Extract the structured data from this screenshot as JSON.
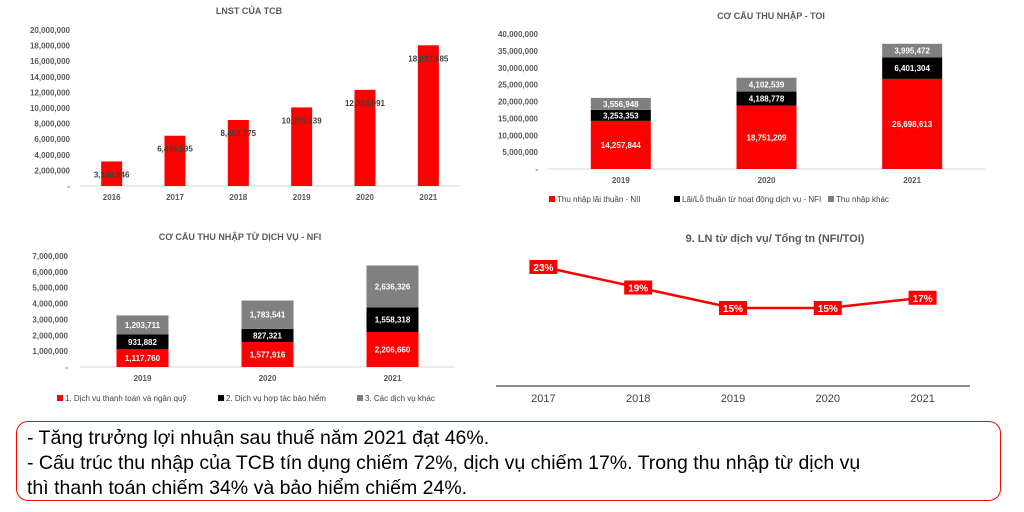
{
  "chart_data": [
    {
      "id": "lnst",
      "type": "bar",
      "title": "LNST CỦA TCB",
      "categories": [
        "2016",
        "2017",
        "2018",
        "2019",
        "2020",
        "2021"
      ],
      "values": [
        3148846,
        6445595,
        8462775,
        10075139,
        12324991,
        18037685
      ],
      "data_labels": [
        "3,148,846",
        "6,445,595",
        "8,462,775",
        "10,075,139",
        "12,324,991",
        "18,037,685"
      ],
      "ylim": [
        0,
        20000000
      ],
      "yticks": [
        0,
        2000000,
        4000000,
        6000000,
        8000000,
        10000000,
        12000000,
        14000000,
        16000000,
        18000000,
        20000000
      ],
      "ytick_labels": [
        "-",
        "2,000,000",
        "4,000,000",
        "6,000,000",
        "8,000,000",
        "10,000,000",
        "12,000,000",
        "14,000,000",
        "16,000,000",
        "18,000,000",
        "20,000,000"
      ],
      "xlabel": "",
      "ylabel": "",
      "grid": false,
      "color": "#ff0000"
    },
    {
      "id": "toi",
      "type": "bar",
      "stacked": true,
      "title": "CƠ CẤU THU NHẬP - TOI",
      "categories": [
        "2019",
        "2020",
        "2021"
      ],
      "series": [
        {
          "name": "Thu nhập lãi thuần - NII",
          "color": "#ff0000",
          "label_color": "#ffffff",
          "values": [
            14257844,
            18751209,
            26698613
          ],
          "data_labels": [
            "14,257,844",
            "18,751,209",
            "26,698,613"
          ]
        },
        {
          "name": "Lãi/Lỗ thuần từ hoạt động dịch vụ - NFI",
          "color": "#000000",
          "label_color": "#ffffff",
          "values": [
            3253353,
            4188778,
            6401304
          ],
          "data_labels": [
            "3,253,353",
            "4,188,778",
            "6,401,304"
          ]
        },
        {
          "name": "Thu nhập khác",
          "color": "#808080",
          "label_color": "#ffffff",
          "values": [
            3556948,
            4102539,
            3995472
          ],
          "data_labels": [
            "3,556,948",
            "4,102,539",
            "3,995,472"
          ]
        }
      ],
      "ylim": [
        0,
        40000000
      ],
      "yticks": [
        0,
        5000000,
        10000000,
        15000000,
        20000000,
        25000000,
        30000000,
        35000000,
        40000000
      ],
      "ytick_labels": [
        "-",
        "5,000,000",
        "10,000,000",
        "15,000,000",
        "20,000,000",
        "25,000,000",
        "30,000,000",
        "35,000,000",
        "40,000,000"
      ],
      "legend": "bottom",
      "grid": false
    },
    {
      "id": "nfi",
      "type": "bar",
      "stacked": true,
      "title": "CƠ CẤU THU NHẬP TỪ DỊCH VỤ - NFI",
      "categories": [
        "2019",
        "2020",
        "2021"
      ],
      "series": [
        {
          "name": "1. Dịch vụ thanh toán và ngân quỹ",
          "color": "#ff0000",
          "label_color": "#ffffff",
          "values": [
            1117760,
            1577916,
            2206660
          ],
          "data_labels": [
            "1,117,760",
            "1,577,916",
            "2,206,660"
          ]
        },
        {
          "name": "2. Dịch vụ hợp tác bảo hiểm",
          "color": "#000000",
          "label_color": "#ffffff",
          "values": [
            931882,
            827321,
            1558318
          ],
          "data_labels": [
            "931,882",
            "827,321",
            "1,558,318"
          ]
        },
        {
          "name": "3. Các dịch vụ khác",
          "color": "#808080",
          "label_color": "#ffffff",
          "values": [
            1203711,
            1783541,
            2636326
          ],
          "data_labels": [
            "1,203,711",
            "1,783,541",
            "2,636,326"
          ]
        }
      ],
      "ylim": [
        0,
        7000000
      ],
      "yticks": [
        0,
        1000000,
        2000000,
        3000000,
        4000000,
        5000000,
        6000000,
        7000000
      ],
      "ytick_labels": [
        "-",
        "1,000,000",
        "2,000,000",
        "3,000,000",
        "4,000,000",
        "5,000,000",
        "6,000,000",
        "7,000,000"
      ],
      "legend": "bottom",
      "grid": false
    },
    {
      "id": "ratio",
      "type": "line",
      "title": "9. LN từ dịch vụ/ Tổng tn (NFI/TOI)",
      "categories": [
        "2017",
        "2018",
        "2019",
        "2020",
        "2021"
      ],
      "values": [
        23,
        19,
        15,
        15,
        17
      ],
      "data_labels": [
        "23%",
        "19%",
        "15%",
        "15%",
        "17%"
      ],
      "ylim": [
        0,
        26
      ],
      "color": "#ff0000",
      "grid": false
    }
  ],
  "note": {
    "lines": [
      "- Tăng trưởng lợi nhuận sau thuế năm 2021 đạt 46%.",
      "- Cấu trúc thu nhập của TCB tín dụng chiếm 72%, dịch vụ chiếm 17%. Trong thu nhập từ dịch vụ",
      "thì thanh toán chiếm 34% và bảo hiểm chiếm 24%."
    ],
    "border_color": "#ff0000"
  }
}
